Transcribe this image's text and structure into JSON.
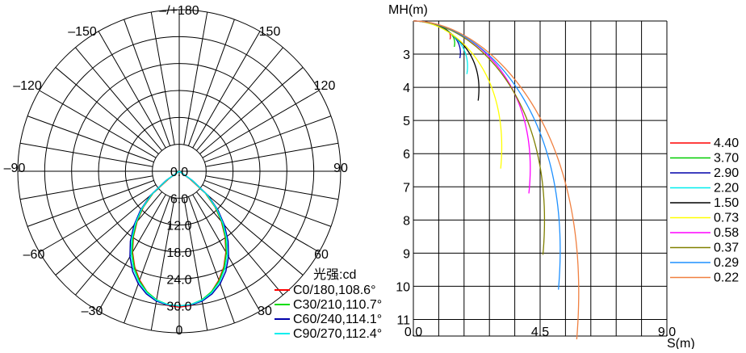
{
  "chart_data": [
    {
      "type": "polar",
      "angle_labels": [
        {
          "angle": 180,
          "text": "–/+180"
        },
        {
          "angle": 150,
          "text": "150"
        },
        {
          "angle": -150,
          "text": "–150"
        },
        {
          "angle": 120,
          "text": "120"
        },
        {
          "angle": -120,
          "text": "–120"
        },
        {
          "angle": 90,
          "text": "90"
        },
        {
          "angle": -90,
          "text": "–90"
        },
        {
          "angle": 60,
          "text": "60"
        },
        {
          "angle": -60,
          "text": "–60"
        },
        {
          "angle": 30,
          "text": "30"
        },
        {
          "angle": -30,
          "text": "–30"
        },
        {
          "angle": 0,
          "text": "0"
        }
      ],
      "radial_max": 36,
      "radial_ticks": [
        "0.0",
        "6.0",
        "12.0",
        "18.0",
        "24.0",
        "30.0"
      ],
      "radial_values": [
        0,
        6,
        12,
        18,
        24,
        30
      ],
      "unit_label": "光强:cd",
      "series": [
        {
          "name": "C0/180,108.6°",
          "color": "#ff0000",
          "values": [
            30.3,
            30.0,
            29.2,
            27.8,
            25.8,
            23.5,
            20.8,
            17.8,
            14.6,
            11.3,
            7.6,
            3.0,
            0.0
          ],
          "angles": [
            0,
            5,
            10,
            15,
            20,
            25,
            30,
            35,
            40,
            45,
            50,
            54,
            60
          ]
        },
        {
          "name": "C30/210,110.7°",
          "color": "#00dd00",
          "values": [
            30.0,
            29.8,
            29.1,
            27.8,
            26.0,
            23.7,
            21.0,
            18.0,
            14.8,
            11.5,
            7.8,
            3.2,
            0.0
          ],
          "angles": [
            0,
            5,
            10,
            15,
            20,
            25,
            30,
            35,
            40,
            45,
            50,
            55,
            60
          ]
        },
        {
          "name": "C60/240,114.1°",
          "color": "#0000aa",
          "values": [
            30.0,
            29.9,
            29.4,
            28.3,
            26.7,
            24.6,
            22.0,
            19.0,
            15.7,
            12.2,
            8.4,
            3.6,
            0.0
          ],
          "angles": [
            0,
            5,
            10,
            15,
            20,
            25,
            30,
            35,
            40,
            45,
            50,
            55,
            60
          ]
        },
        {
          "name": "C90/270,112.4°",
          "color": "#00eeee",
          "values": [
            30.0,
            29.8,
            29.2,
            28.0,
            26.3,
            24.1,
            21.5,
            18.5,
            15.2,
            11.8,
            8.1,
            3.4,
            0.0
          ],
          "angles": [
            0,
            5,
            10,
            15,
            20,
            25,
            30,
            35,
            40,
            45,
            50,
            55,
            60
          ]
        }
      ]
    },
    {
      "type": "contour",
      "ylabel": "MH(m)",
      "xlabel": "S(m)",
      "xlim": [
        0,
        9
      ],
      "ylim": [
        2,
        11.5
      ],
      "x_ticks": [
        "0.0",
        "4.5",
        "9.0"
      ],
      "x_tick_values": [
        0,
        4.5,
        9
      ],
      "y_ticks": [
        "3",
        "4",
        "5",
        "6",
        "7",
        "8",
        "9",
        "10",
        "11"
      ],
      "y_tick_values": [
        3,
        4,
        5,
        6,
        7,
        8,
        9,
        10,
        11
      ],
      "levels": [
        {
          "label": "4.40",
          "color": "#ff0000",
          "mh_at_center": 2.55,
          "max_s": 1.3
        },
        {
          "label": "3.70",
          "color": "#00cc00",
          "mh_at_center": 2.78,
          "max_s": 1.45
        },
        {
          "label": "2.90",
          "color": "#0000aa",
          "mh_at_center": 3.12,
          "max_s": 1.65
        },
        {
          "label": "2.20",
          "color": "#00eeee",
          "mh_at_center": 3.6,
          "max_s": 1.9
        },
        {
          "label": "1.50",
          "color": "#000000",
          "mh_at_center": 4.4,
          "max_s": 2.3
        },
        {
          "label": "0.73",
          "color": "#ffff00",
          "mh_at_center": 6.45,
          "max_s": 3.1
        },
        {
          "label": "0.58",
          "color": "#ff00ff",
          "mh_at_center": 7.2,
          "max_s": 4.1
        },
        {
          "label": "0.37",
          "color": "#808000",
          "mh_at_center": 9.05,
          "max_s": 4.6
        },
        {
          "label": "0.29",
          "color": "#1e90ff",
          "mh_at_center": 10.1,
          "max_s": 5.15
        },
        {
          "label": "0.22",
          "color": "#f08040",
          "mh_at_center": 11.6,
          "max_s": 5.8
        }
      ]
    }
  ]
}
